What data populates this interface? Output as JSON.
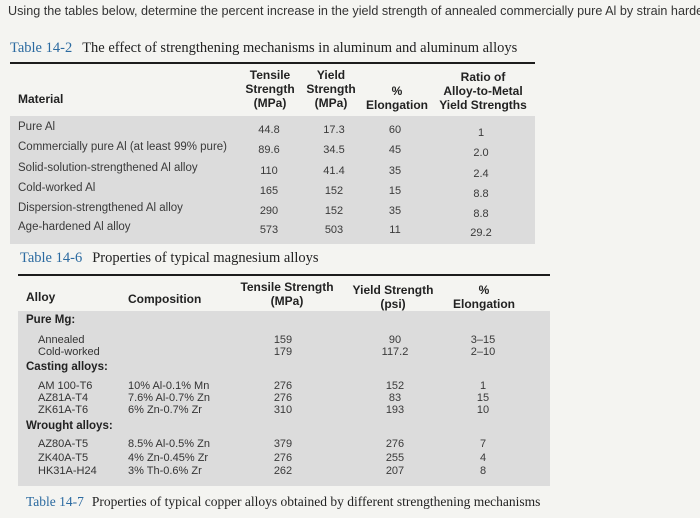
{
  "question": "Using the tables below, determine the percent increase in the yield strength of annealed commercially pure Al by strain hardening",
  "table_14_2": {
    "number": "Table 14-2",
    "title": "The effect of strengthening mechanisms in aluminum and aluminum alloys",
    "headers": {
      "material": "Material",
      "tensile": "Tensile\nStrength\n(MPa)",
      "yield": "Yield\nStrength\n(MPa)",
      "elongation": "%\nElongation",
      "ratio": "Ratio of\nAlloy-to-Metal\nYield Strengths"
    },
    "rows": [
      {
        "material": "Pure Al",
        "tensile": "44.8",
        "yield": "17.3",
        "elongation": "60",
        "ratio": "1"
      },
      {
        "material": "Commercially pure Al (at least 99% pure)",
        "tensile": "89.6",
        "yield": "34.5",
        "elongation": "45",
        "ratio": "2.0"
      },
      {
        "material": "Solid-solution-strengthened Al alloy",
        "tensile": "110",
        "yield": "41.4",
        "elongation": "35",
        "ratio": "2.4"
      },
      {
        "material": "Cold-worked Al",
        "tensile": "165",
        "yield": "152",
        "elongation": "15",
        "ratio": "8.8"
      },
      {
        "material": "Dispersion-strengthened Al alloy",
        "tensile": "290",
        "yield": "152",
        "elongation": "35",
        "ratio": "8.8"
      },
      {
        "material": "Age-hardened Al alloy",
        "tensile": "573",
        "yield": "503",
        "elongation": "11",
        "ratio": "29.2"
      }
    ]
  },
  "table_14_6": {
    "number": "Table 14-6",
    "title": "Properties of typical magnesium alloys",
    "headers": {
      "alloy": "Alloy",
      "composition": "Composition",
      "tensile": "Tensile Strength\n(MPa)",
      "yield": "Yield Strength\n(psi)",
      "elongation": "%\nElongation"
    },
    "groups": [
      {
        "name": "Pure Mg:",
        "alloys": [
          "Annealed",
          "Cold-worked"
        ],
        "compositions": [],
        "tensile": [
          "159",
          "179"
        ],
        "yield": [
          "90",
          "117.2"
        ],
        "elongation": [
          "3–15",
          "2–10"
        ]
      },
      {
        "name": "Casting alloys:",
        "alloys": [
          "AM 100-T6",
          "AZ81A-T4",
          "ZK61A-T6"
        ],
        "compositions": [
          "10% Al-0.1% Mn",
          "7.6% Al-0.7% Zn",
          "6% Zn-0.7% Zr"
        ],
        "tensile": [
          "276",
          "276",
          "310"
        ],
        "yield": [
          "152",
          "83",
          "193"
        ],
        "elongation": [
          "1",
          "15",
          "10"
        ]
      },
      {
        "name": "Wrought alloys:",
        "alloys": [
          "AZ80A-T5",
          "ZK40A-T5",
          "HK31A-H24"
        ],
        "compositions": [
          "8.5% Al-0.5% Zn",
          "4% Zn-0.45% Zr",
          "3% Th-0.6% Zr"
        ],
        "tensile": [
          "379",
          "276",
          "262"
        ],
        "yield": [
          "276",
          "255",
          "207"
        ],
        "elongation": [
          "7",
          "4",
          "8"
        ]
      }
    ]
  },
  "table_14_7": {
    "number": "Table 14-7",
    "title": "Properties of typical copper alloys obtained by different strengthening mechanisms"
  }
}
